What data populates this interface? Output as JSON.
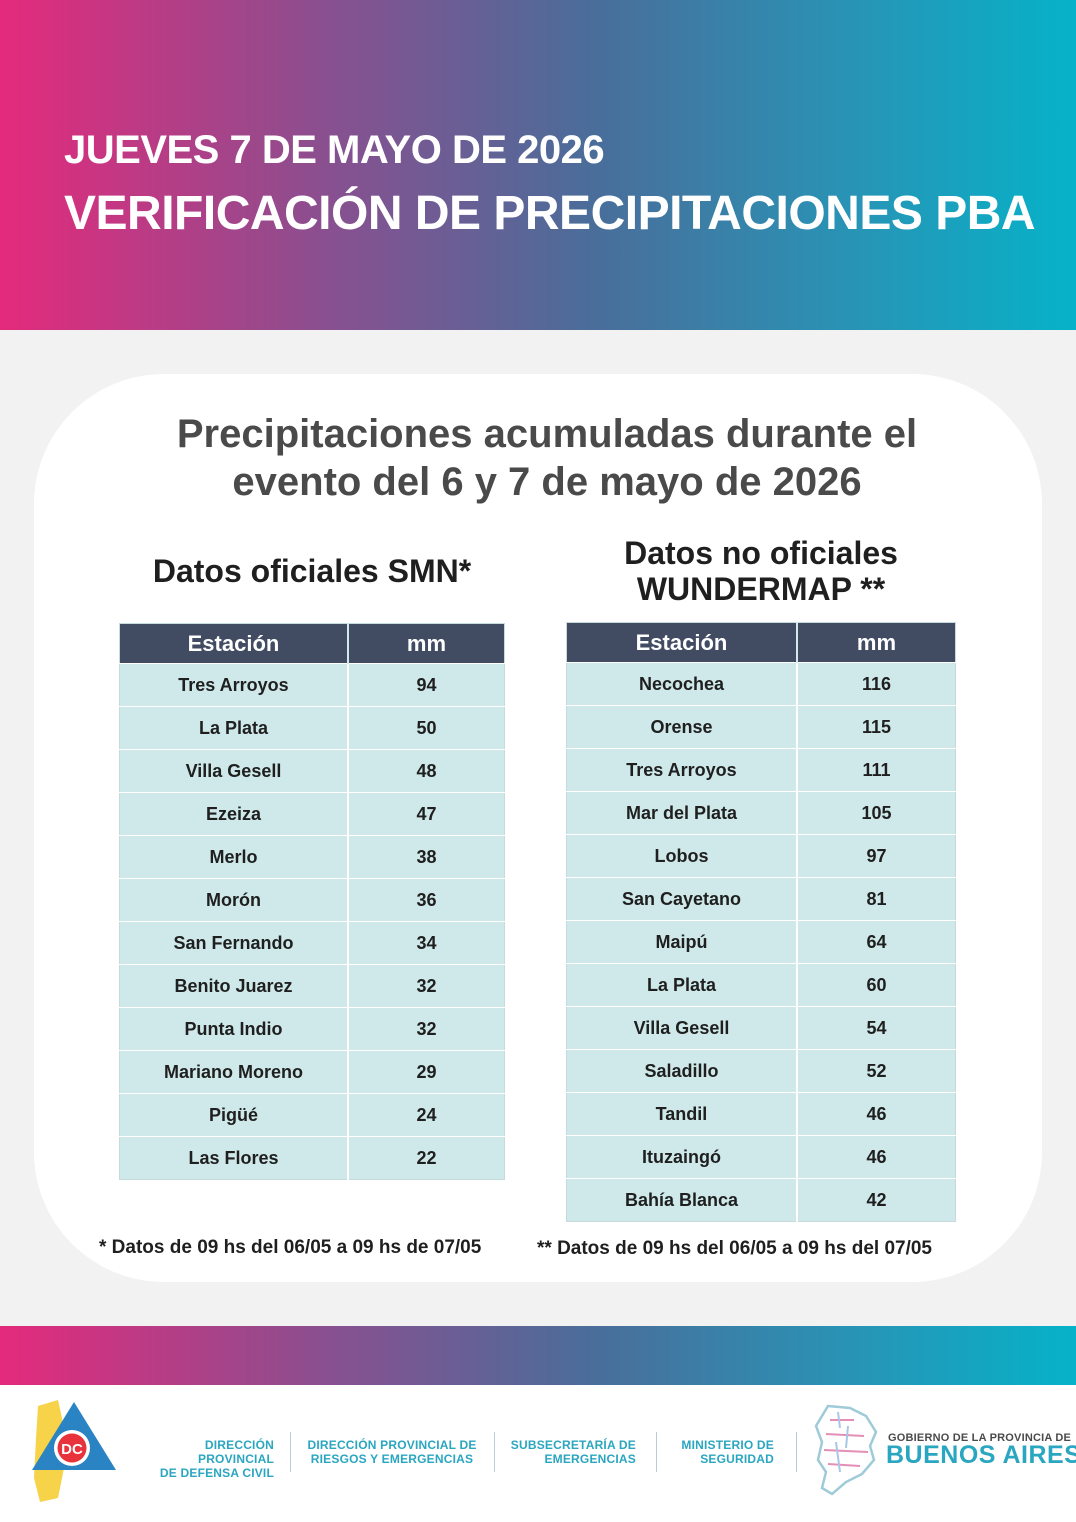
{
  "header": {
    "date": "JUEVES 7 DE MAYO DE 2026",
    "title": "VERIFICACIÓN DE PRECIPITACIONES PBA"
  },
  "card": {
    "title_line1": "Precipitaciones acumuladas durante el",
    "title_line2": "evento del 6 y 7 de mayo de 2026"
  },
  "smn": {
    "title": "Datos oficiales SMN*",
    "headers": [
      "Estación",
      "mm"
    ],
    "rows": [
      [
        "Tres Arroyos",
        "94"
      ],
      [
        "La Plata",
        "50"
      ],
      [
        "Villa Gesell",
        "48"
      ],
      [
        "Ezeiza",
        "47"
      ],
      [
        "Merlo",
        "38"
      ],
      [
        "Morón",
        "36"
      ],
      [
        "San Fernando",
        "34"
      ],
      [
        "Benito Juarez",
        "32"
      ],
      [
        "Punta Indio",
        "32"
      ],
      [
        "Mariano Moreno",
        "29"
      ],
      [
        "Pigüé",
        "24"
      ],
      [
        "Las Flores",
        "22"
      ]
    ],
    "note": "* Datos de 09 hs del 06/05 a 09 hs de 07/05"
  },
  "wundermap": {
    "title_line1": "Datos no oficiales",
    "title_line2": "WUNDERMAP **",
    "headers": [
      "Estación",
      "mm"
    ],
    "rows": [
      [
        "Necochea",
        "116"
      ],
      [
        "Orense",
        "115"
      ],
      [
        "Tres Arroyos",
        "111"
      ],
      [
        "Mar del Plata",
        "105"
      ],
      [
        "Lobos",
        "97"
      ],
      [
        "San Cayetano",
        "81"
      ],
      [
        "Maipú",
        "64"
      ],
      [
        "La Plata",
        "60"
      ],
      [
        "Villa Gesell",
        "54"
      ],
      [
        "Saladillo",
        "52"
      ],
      [
        "Tandil",
        "46"
      ],
      [
        "Ituzaingó",
        "46"
      ],
      [
        "Bahía Blanca",
        "42"
      ]
    ],
    "note": "** Datos de 09 hs del 06/05 a 09 hs del 07/05"
  },
  "footer": {
    "logo_dc_text": "DC",
    "org1_line1": "DIRECCIÓN PROVINCIAL",
    "org1_line2": "DE DEFENSA CIVIL",
    "org2_line1": "DIRECCIÓN PROVINCIAL DE",
    "org2_line2": "RIESGOS Y EMERGENCIAS",
    "org3_line1": "SUBSECRETARÍA DE",
    "org3_line2": "EMERGENCIAS",
    "org4_line1": "MINISTERIO DE",
    "org4_line2": "SEGURIDAD",
    "gov_small": "GOBIERNO DE LA PROVINCIA DE",
    "gov_big": "BUENOS AIRES"
  },
  "colors": {
    "gradient_start": "#e42a7c",
    "gradient_end": "#06b2c9",
    "table_header": "#414c62",
    "table_cell": "#cfe9ea",
    "footer_text": "#2aa6c0"
  }
}
